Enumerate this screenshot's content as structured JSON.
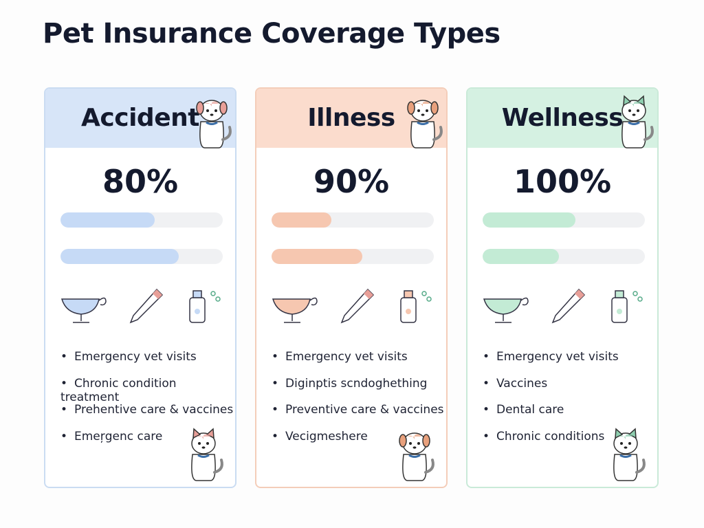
{
  "header": {
    "title": "Pet Insurance Coverage Types"
  },
  "cards": [
    {
      "name": "Accident",
      "coverage": "80%",
      "items": [
        "Emergency vet visits",
        "Chronic condition treatment",
        "Prehentive care & vaccines",
        "Emeŗgenc care"
      ]
    },
    {
      "name": "Illness",
      "coverage": "90%",
      "items": [
        "Emergency vet visits",
        "Diginptis scndoghething",
        "Preventive care & vaccines",
        "Vecigmeshere"
      ]
    },
    {
      "name": "Wellness",
      "coverage": "100%",
      "items": [
        "Emergency vet visits",
        "Vaccines",
        "Dental care",
        "Chronic conditions"
      ]
    }
  ]
}
